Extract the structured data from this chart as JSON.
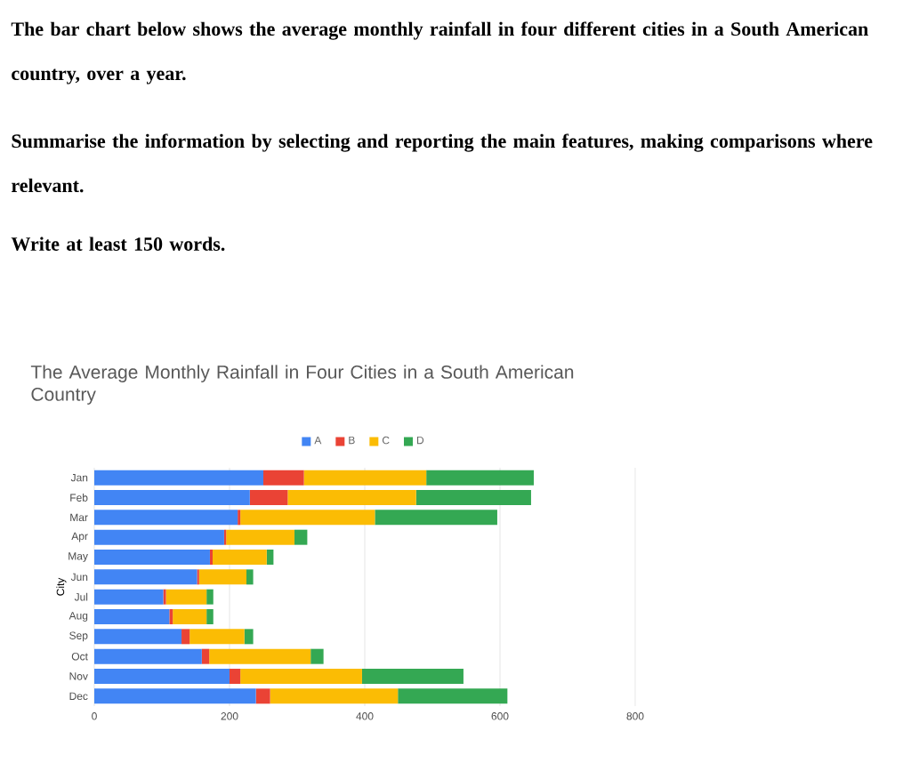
{
  "chart_data": {
    "type": "bar",
    "orientation": "horizontal",
    "stacked": true,
    "title": "The Average Monthly Rainfall in Four Cities in a South American Country",
    "ylabel": "City",
    "annotations": [
      "The bar chart below shows the average monthly rainfall in four different cities in a South American country, over a year.",
      "Summarise the information by selecting and reporting the main features, making comparisons where relevant.",
      "Write at least 150 words."
    ],
    "categories": [
      "Jan",
      "Feb",
      "Mar",
      "Apr",
      "May",
      "Jun",
      "Jul",
      "Aug",
      "Sep",
      "Oct",
      "Nov",
      "Dec"
    ],
    "series": [
      {
        "name": "A",
        "color": "#4285f4",
        "values": [
          250,
          230,
          212,
          192,
          171,
          152,
          102,
          111,
          129,
          159,
          200,
          239
        ]
      },
      {
        "name": "B",
        "color": "#ea4335",
        "values": [
          60,
          56,
          4,
          3,
          4,
          3,
          4,
          5,
          12,
          11,
          16,
          21
        ]
      },
      {
        "name": "C",
        "color": "#fbbc04",
        "values": [
          181,
          190,
          199,
          101,
          80,
          70,
          60,
          50,
          81,
          150,
          180,
          189
        ]
      },
      {
        "name": "D",
        "color": "#34a853",
        "values": [
          159,
          170,
          181,
          19,
          10,
          10,
          10,
          10,
          13,
          19,
          150,
          162
        ]
      }
    ],
    "xlim": [
      0,
      800
    ],
    "xticks": [
      0,
      200,
      400,
      600,
      800
    ],
    "grid": "x",
    "legend": "top"
  }
}
